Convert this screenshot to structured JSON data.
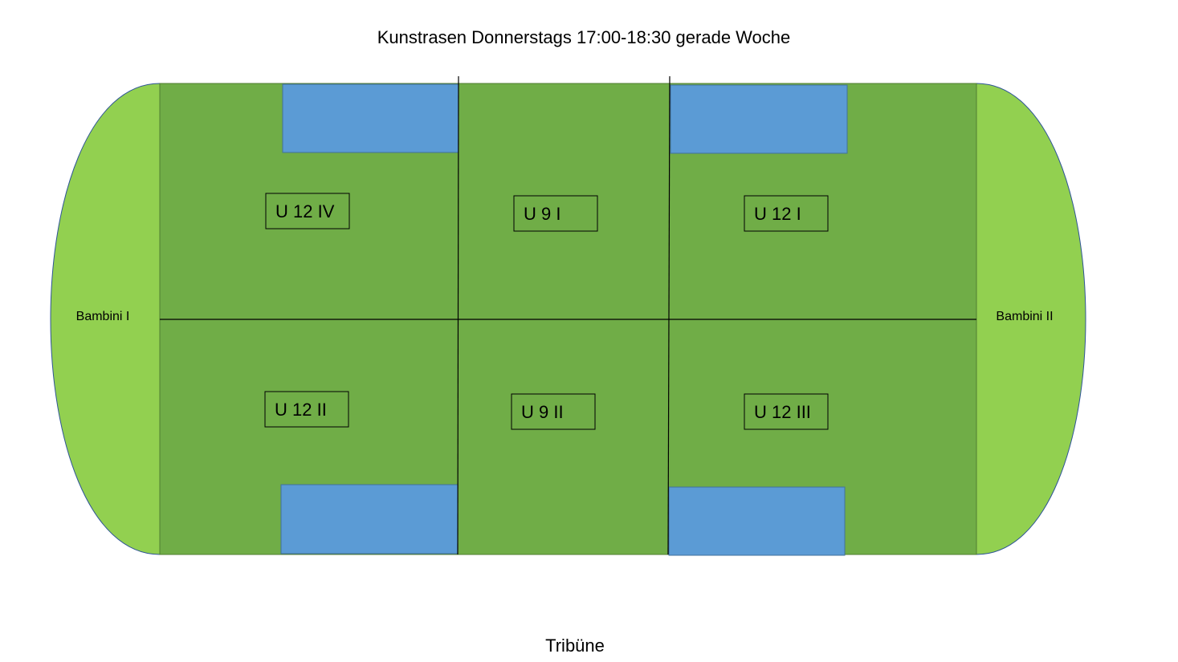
{
  "title": "Kunstrasen Donnerstags 17:00-18:30 gerade Woche",
  "zones": [
    {
      "label": "U 12 IV"
    },
    {
      "label": "U 9 I"
    },
    {
      "label": "U 12 I"
    },
    {
      "label": "U 12 II"
    },
    {
      "label": "U 9 II"
    },
    {
      "label": "U 12 III"
    }
  ],
  "side_areas": [
    {
      "label": "Bambini I"
    },
    {
      "label": "Bambini II"
    }
  ],
  "footer": "Tribüne"
}
